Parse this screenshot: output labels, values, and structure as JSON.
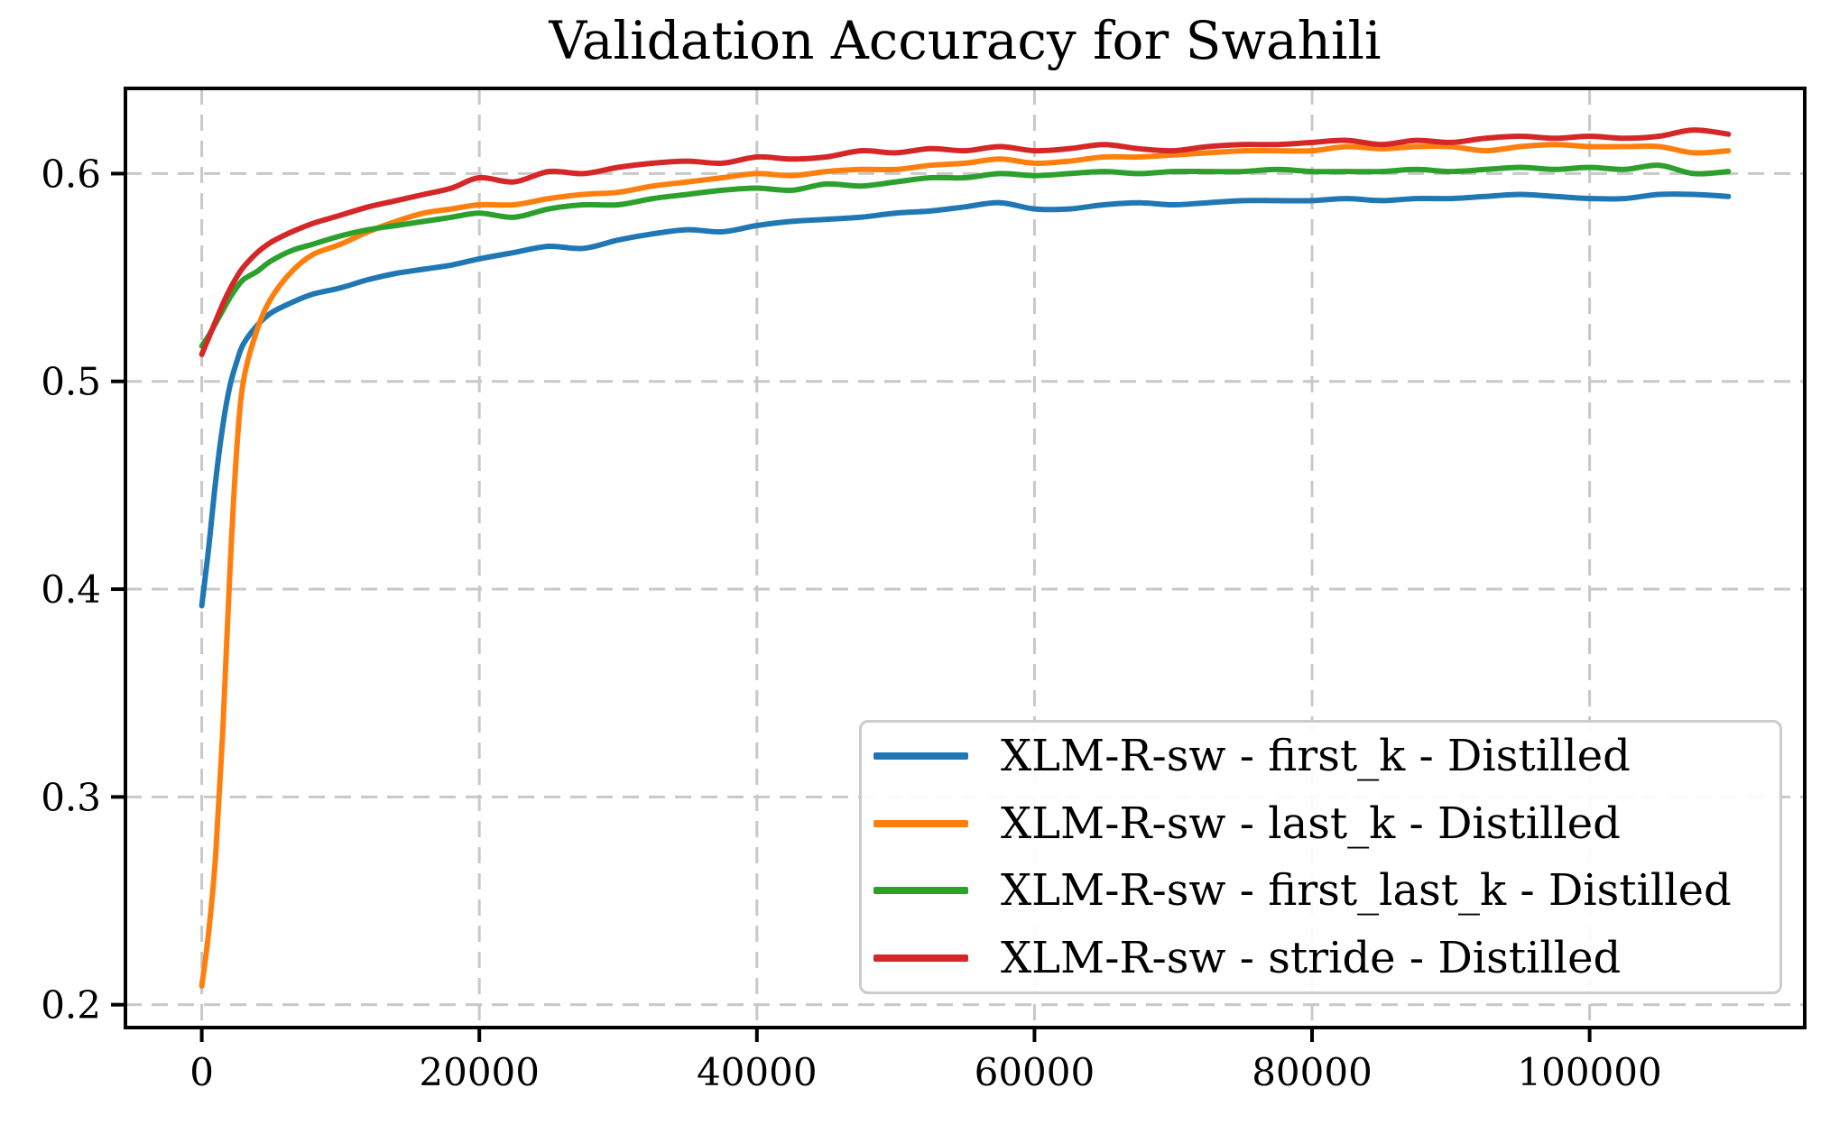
{
  "chart_data": {
    "type": "line",
    "title": "Validation Accuracy for Swahili",
    "xlabel": "",
    "ylabel": "",
    "xlim": [
      -5500,
      115500
    ],
    "ylim": [
      0.189,
      0.641
    ],
    "x_ticks": [
      0,
      20000,
      40000,
      60000,
      80000,
      100000
    ],
    "x_tick_labels": [
      "0",
      "20000",
      "40000",
      "60000",
      "80000",
      "100000"
    ],
    "y_ticks": [
      0.2,
      0.3,
      0.4,
      0.5,
      0.6
    ],
    "y_tick_labels": [
      "0.2",
      "0.3",
      "0.4",
      "0.5",
      "0.6"
    ],
    "grid": true,
    "grid_style": "dashed",
    "grid_color": "#c8c8c8",
    "legend_position": "lower right",
    "x": [
      0,
      500,
      1000,
      1500,
      2000,
      2500,
      3000,
      4000,
      5000,
      6500,
      8000,
      10000,
      12000,
      14000,
      16000,
      18000,
      20000,
      22500,
      25000,
      27500,
      30000,
      32500,
      35000,
      37500,
      40000,
      42500,
      45000,
      47500,
      50000,
      52500,
      55000,
      57500,
      60000,
      62500,
      65000,
      67500,
      70000,
      72500,
      75000,
      77500,
      80000,
      82500,
      85000,
      87500,
      90000,
      92500,
      95000,
      97500,
      100000,
      102500,
      105000,
      107500,
      110000
    ],
    "series": [
      {
        "name": "XLM-R-sw - first_k - Distilled",
        "color": "#1f77b4",
        "values": [
          0.392,
          0.42,
          0.452,
          0.478,
          0.497,
          0.509,
          0.518,
          0.527,
          0.533,
          0.538,
          0.542,
          0.545,
          0.549,
          0.552,
          0.554,
          0.556,
          0.559,
          0.562,
          0.565,
          0.564,
          0.568,
          0.571,
          0.573,
          0.572,
          0.575,
          0.577,
          0.578,
          0.579,
          0.581,
          0.582,
          0.584,
          0.586,
          0.583,
          0.583,
          0.585,
          0.586,
          0.585,
          0.586,
          0.587,
          0.587,
          0.587,
          0.588,
          0.587,
          0.588,
          0.588,
          0.589,
          0.59,
          0.589,
          0.588,
          0.588,
          0.59,
          0.59,
          0.589
        ]
      },
      {
        "name": "XLM-R-sw - last_k - Distilled",
        "color": "#ff7f0e",
        "values": [
          0.209,
          0.235,
          0.272,
          0.33,
          0.405,
          0.465,
          0.5,
          0.525,
          0.54,
          0.553,
          0.561,
          0.566,
          0.572,
          0.577,
          0.581,
          0.583,
          0.585,
          0.585,
          0.588,
          0.59,
          0.591,
          0.594,
          0.596,
          0.598,
          0.6,
          0.599,
          0.601,
          0.602,
          0.602,
          0.604,
          0.605,
          0.607,
          0.605,
          0.606,
          0.608,
          0.608,
          0.609,
          0.61,
          0.611,
          0.611,
          0.611,
          0.613,
          0.612,
          0.613,
          0.613,
          0.611,
          0.613,
          0.614,
          0.613,
          0.613,
          0.613,
          0.61,
          0.611
        ]
      },
      {
        "name": "XLM-R-sw - first_last_k - Distilled",
        "color": "#2ca02c",
        "values": [
          0.517,
          0.522,
          0.528,
          0.534,
          0.54,
          0.545,
          0.549,
          0.553,
          0.558,
          0.563,
          0.566,
          0.57,
          0.573,
          0.575,
          0.577,
          0.579,
          0.581,
          0.579,
          0.583,
          0.585,
          0.585,
          0.588,
          0.59,
          0.592,
          0.593,
          0.592,
          0.595,
          0.594,
          0.596,
          0.598,
          0.598,
          0.6,
          0.599,
          0.6,
          0.601,
          0.6,
          0.601,
          0.601,
          0.601,
          0.602,
          0.601,
          0.601,
          0.601,
          0.602,
          0.601,
          0.602,
          0.603,
          0.602,
          0.603,
          0.602,
          0.604,
          0.6,
          0.601
        ]
      },
      {
        "name": "XLM-R-sw - stride - Distilled",
        "color": "#d62728",
        "values": [
          0.513,
          0.521,
          0.529,
          0.537,
          0.544,
          0.55,
          0.555,
          0.562,
          0.567,
          0.572,
          0.576,
          0.58,
          0.584,
          0.587,
          0.59,
          0.593,
          0.598,
          0.596,
          0.601,
          0.6,
          0.603,
          0.605,
          0.606,
          0.605,
          0.608,
          0.607,
          0.608,
          0.611,
          0.61,
          0.612,
          0.611,
          0.613,
          0.611,
          0.612,
          0.614,
          0.612,
          0.611,
          0.613,
          0.614,
          0.614,
          0.615,
          0.616,
          0.614,
          0.616,
          0.615,
          0.617,
          0.618,
          0.617,
          0.618,
          0.617,
          0.618,
          0.621,
          0.619
        ]
      }
    ]
  },
  "style": {
    "spine_color": "#000000",
    "tick_color": "#000000",
    "text_color": "#000000",
    "legend_border_color": "#cccccc"
  }
}
